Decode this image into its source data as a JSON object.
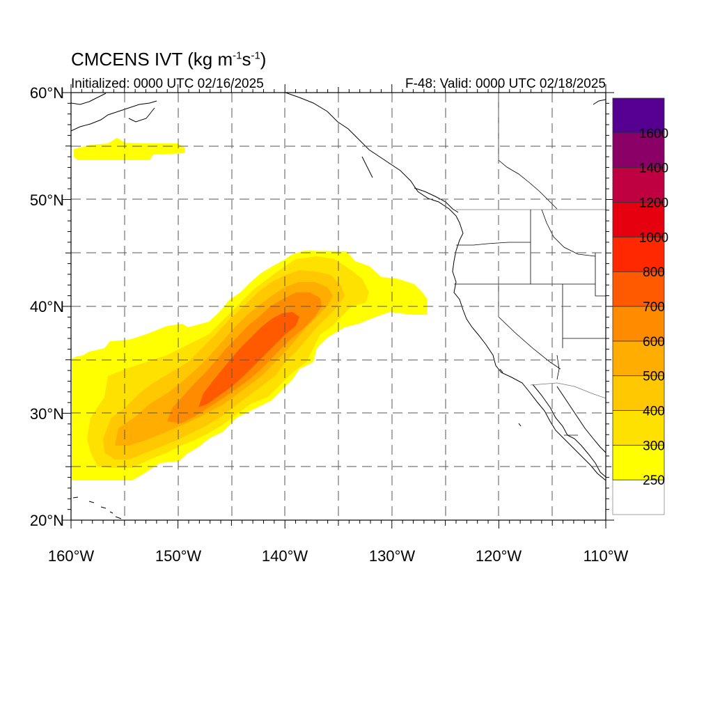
{
  "title": {
    "main": "CMCENS IVT (kg m",
    "sup1": "-1",
    "mid": "s",
    "sup2": "-1",
    "end": ")"
  },
  "subtitle_left": "Initialized: 0000 UTC 02/16/2025",
  "subtitle_right": "F-48: Valid: 0000 UTC 02/18/2025",
  "map": {
    "lon_range": [
      -160,
      -110
    ],
    "lat_range": [
      20,
      60
    ],
    "grid_dashed": true,
    "lon_ticks": [
      "160°W",
      "150°W",
      "140°W",
      "130°W",
      "120°W",
      "110°W"
    ],
    "lat_ticks": [
      "20°N",
      "30°N",
      "40°N",
      "50°N",
      "60°N"
    ]
  },
  "colorbar": {
    "labels": [
      "250",
      "300",
      "400",
      "500",
      "600",
      "700",
      "800",
      "1000",
      "1200",
      "1400",
      "1600"
    ],
    "colors": [
      "#ffffff",
      "#ffff00",
      "#ffe100",
      "#ffc800",
      "#ffad00",
      "#ff8c00",
      "#ff5a00",
      "#ff2800",
      "#e6000f",
      "#bf0041",
      "#8b0066",
      "#550091"
    ]
  },
  "ivt_levels": [
    {
      "level": "250",
      "color": "#ffff00"
    },
    {
      "level": "300",
      "color": "#ffe100"
    },
    {
      "level": "400",
      "color": "#ffc800"
    },
    {
      "level": "500",
      "color": "#ffad00"
    },
    {
      "level": "600",
      "color": "#ff8c00"
    },
    {
      "level": "700",
      "color": "#ff5a00"
    }
  ]
}
